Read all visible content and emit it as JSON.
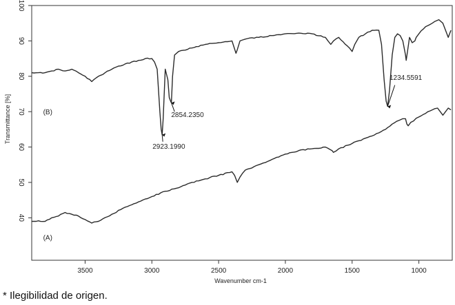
{
  "chart_data": {
    "type": "line",
    "xlabel": "Wavenumber cm-1",
    "ylabel": "Transmittance [%]",
    "xlim": [
      3900,
      750
    ],
    "ylim": [
      28,
      100
    ],
    "x_reversed": true,
    "x_ticks": [
      3500,
      3000,
      2500,
      2000,
      1500,
      1000
    ],
    "y_ticks": [
      40,
      50,
      60,
      70,
      80,
      90,
      100
    ],
    "grid": false,
    "legend": "none",
    "line_color": "#2a2a2a",
    "series": [
      {
        "label": "(B)",
        "x": [
          3900,
          3800,
          3750,
          3700,
          3650,
          3600,
          3550,
          3500,
          3450,
          3400,
          3300,
          3200,
          3100,
          3050,
          3000,
          2980,
          2960,
          2940,
          2930,
          2923,
          2915,
          2900,
          2880,
          2870,
          2860,
          2854,
          2845,
          2830,
          2800,
          2700,
          2600,
          2500,
          2400,
          2370,
          2360,
          2340,
          2300,
          2200,
          2100,
          2000,
          1900,
          1800,
          1700,
          1660,
          1640,
          1600,
          1520,
          1500,
          1480,
          1450,
          1400,
          1350,
          1300,
          1280,
          1260,
          1245,
          1234,
          1220,
          1200,
          1180,
          1160,
          1140,
          1120,
          1100,
          1095,
          1085,
          1070,
          1050,
          1030,
          1020,
          1000,
          950,
          900,
          880,
          850,
          820,
          800,
          780,
          760
        ],
        "y": [
          81,
          81,
          81.5,
          82,
          81.5,
          82,
          81,
          80,
          78.5,
          80,
          82,
          83.5,
          84.5,
          85,
          85,
          84,
          82,
          70,
          65,
          63.5,
          68,
          82,
          79,
          74,
          73,
          72.5,
          80,
          86,
          87,
          88,
          89,
          89.5,
          90,
          86.5,
          87.5,
          90,
          90.5,
          91,
          91.5,
          92,
          92.2,
          92,
          91,
          89,
          90,
          91,
          88,
          87,
          89,
          91,
          92,
          93,
          93,
          89,
          79,
          73,
          71.5,
          76,
          86,
          91,
          92,
          91.5,
          90,
          86,
          84.5,
          87,
          91,
          89.5,
          90,
          91,
          92,
          94,
          95,
          95.5,
          96,
          95,
          93,
          91,
          93
        ]
      },
      {
        "label": "(A)",
        "x": [
          3900,
          3800,
          3750,
          3700,
          3650,
          3600,
          3550,
          3500,
          3450,
          3400,
          3300,
          3200,
          3100,
          3000,
          2900,
          2800,
          2700,
          2600,
          2500,
          2400,
          2380,
          2360,
          2340,
          2300,
          2200,
          2100,
          2000,
          1900,
          1800,
          1700,
          1650,
          1640,
          1600,
          1500,
          1400,
          1300,
          1250,
          1234,
          1200,
          1150,
          1120,
          1100,
          1090,
          1080,
          1060,
          1000,
          950,
          900,
          860,
          840,
          820,
          800,
          780,
          760
        ],
        "y": [
          39,
          39,
          40,
          40.5,
          41.5,
          41,
          40.5,
          39.5,
          38.5,
          39,
          41,
          43,
          44.5,
          46,
          47.5,
          48.5,
          50,
          51,
          52,
          53,
          52,
          50,
          51.5,
          53.5,
          55,
          56.5,
          58,
          59,
          59.5,
          60,
          59,
          58.5,
          59.5,
          61,
          62.5,
          64,
          65,
          65.5,
          66.5,
          67.5,
          68,
          68,
          66.5,
          66,
          67,
          68.5,
          69.5,
          70.5,
          71,
          70,
          69,
          70,
          71,
          70.5
        ]
      }
    ],
    "annotations": [
      {
        "text": "2923.1990",
        "x": 2923,
        "y": 63.5
      },
      {
        "text": "2854.2350",
        "x": 2854,
        "y": 72.5
      },
      {
        "text": "1234.5591",
        "x": 1234,
        "y": 71.5
      }
    ]
  },
  "footnote": "* Ilegibilidad de origen."
}
